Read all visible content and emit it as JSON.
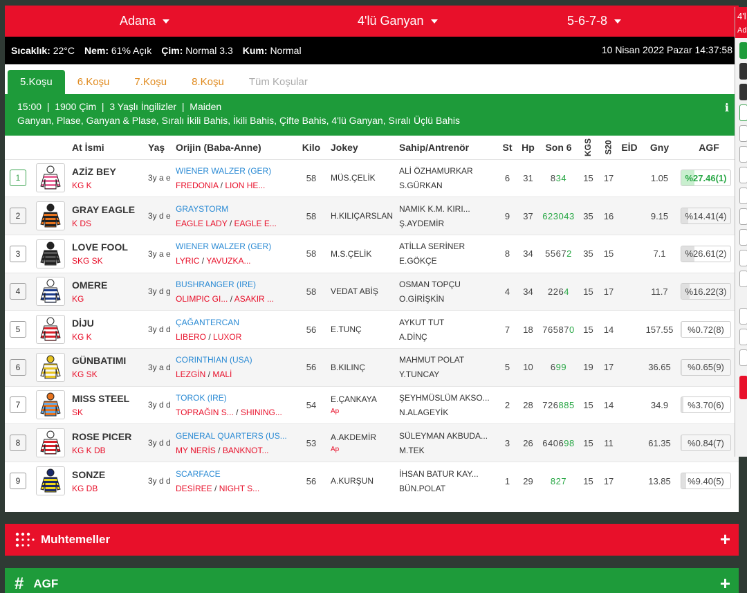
{
  "topbar": {
    "track": "Adana",
    "bet_type": "4'lü Ganyan",
    "races": "5-6-7-8"
  },
  "weather": {
    "temp_label": "Sıcaklık:",
    "temp_value": "22°C",
    "humidity_label": "Nem:",
    "humidity_value": "61% Açık",
    "turf_label": "Çim:",
    "turf_value": "Normal 3.3",
    "dirt_label": "Kum:",
    "dirt_value": "Normal",
    "datetime": "10 Nisan 2022 Pazar 14:37:58"
  },
  "tabs": [
    "5.Koşu",
    "6.Koşu",
    "7.Koşu",
    "8.Koşu",
    "Tüm Koşular"
  ],
  "race_info": {
    "line1": "15:00  |  1900 Çim  |  3 Yaşlı İngilizler  |  Maiden",
    "line2": "Ganyan, Plase, Ganyan & Plase, Sıralı İkili Bahis, İkili Bahis, Çifte Bahis, 4'lü Ganyan, Sıralı Üçlü Bahis",
    "info_glyph": "i"
  },
  "columns": {
    "name": "At İsmi",
    "age": "Yaş",
    "origin": "Orijin (Baba-Anne)",
    "weight": "Kilo",
    "jockey": "Jokey",
    "owner": "Sahip/Antrenör",
    "st": "St",
    "hp": "Hp",
    "son6": "Son 6",
    "kgs": "KGS",
    "s20": "S20",
    "eid": "EİD",
    "gny": "Gny",
    "agf": "AGF"
  },
  "horses": [
    {
      "no": "1",
      "name": "AZİZ BEY",
      "equip": "KG K",
      "age": "3y a e",
      "sire": "WIENER WALZER (GER)",
      "dam": "FREDONIA",
      "damsire": "LION HE...",
      "weight": "58",
      "jockey": "MÜS.ÇELİK",
      "ap": "",
      "owner": "ALİ ÖZHAMURKAR",
      "trainer": "S.GÜRKAN",
      "st": "6",
      "hp": "31",
      "son6_black": "8",
      "son6_green": "34",
      "kgs": "15",
      "s20": "17",
      "gny": "1.05",
      "agf": "%27.46(1)",
      "agf_level": 27.46,
      "selected": true,
      "colors": [
        "#e86a9a",
        "#ffffff"
      ]
    },
    {
      "no": "2",
      "name": "GRAY EAGLE",
      "equip": "K DS",
      "age": "3y d e",
      "sire": "GRAYSTORM",
      "dam": "EAGLE LADY",
      "damsire": "EAGLE E...",
      "weight": "58",
      "jockey": "H.KILIÇARSLAN",
      "ap": "",
      "owner": "NAMIK K.M. KIRI...",
      "trainer": "Ş.AYDEMİR",
      "st": "9",
      "hp": "37",
      "son6_black": "",
      "son6_green": "623043",
      "kgs": "35",
      "s20": "16",
      "gny": "9.15",
      "agf": "%14.41(4)",
      "agf_level": 14.41,
      "selected": false,
      "colors": [
        "#e8741e",
        "#222222"
      ]
    },
    {
      "no": "3",
      "name": "LOVE FOOL",
      "equip": "SKG SK",
      "age": "3y a e",
      "sire": "WIENER WALZER (GER)",
      "dam": "LYRIC",
      "damsire": "YAVUZKA...",
      "weight": "58",
      "jockey": "M.S.ÇELİK",
      "ap": "",
      "owner": "ATİLLA SERİNER",
      "trainer": "E.GÖKÇE",
      "st": "8",
      "hp": "34",
      "son6_black": "5567",
      "son6_green": "2",
      "kgs": "35",
      "s20": "15",
      "gny": "7.1",
      "agf": "%26.61(2)",
      "agf_level": 26.61,
      "selected": false,
      "colors": [
        "#555555",
        "#222222"
      ]
    },
    {
      "no": "4",
      "name": "OMERE",
      "equip": "KG",
      "age": "3y d g",
      "sire": "BUSHRANGER (IRE)",
      "dam": "OLIMPIC GI...",
      "damsire": "ASAKIR ...",
      "weight": "58",
      "jockey": "VEDAT ABİŞ",
      "ap": "",
      "owner": "OSMAN TOPÇU",
      "trainer": "O.GİRİŞKİN",
      "st": "4",
      "hp": "34",
      "son6_black": "226",
      "son6_green": "4",
      "kgs": "15",
      "s20": "17",
      "gny": "11.7",
      "agf": "%16.22(3)",
      "agf_level": 16.22,
      "selected": false,
      "colors": [
        "#1a3a8a",
        "#ffffff"
      ]
    },
    {
      "no": "5",
      "name": "DİJU",
      "equip": "KG K",
      "age": "3y d d",
      "sire": "ÇAĞANTERCAN",
      "dam": "LIBERO",
      "damsire": "LUXOR",
      "weight": "56",
      "jockey": "E.TUNÇ",
      "ap": "",
      "owner": "AYKUT TUT",
      "trainer": "A.DİNÇ",
      "st": "7",
      "hp": "18",
      "son6_black": "76587",
      "son6_green": "0",
      "kgs": "15",
      "s20": "14",
      "gny": "157.55",
      "agf": "%0.72(8)",
      "agf_level": 0.72,
      "selected": false,
      "colors": [
        "#d8202a",
        "#ffffff"
      ]
    },
    {
      "no": "6",
      "name": "GÜNBATIMI",
      "equip": "KG SK",
      "age": "3y a d",
      "sire": "CORINTHIAN (USA)",
      "dam": "LEZGİN",
      "damsire": "MALİ",
      "weight": "56",
      "jockey": "B.KILINÇ",
      "ap": "",
      "owner": "MAHMUT POLAT",
      "trainer": "Y.TUNCAY",
      "st": "5",
      "hp": "10",
      "son6_black": "6",
      "son6_green": "99",
      "kgs": "19",
      "s20": "17",
      "gny": "36.65",
      "agf": "%0.65(9)",
      "agf_level": 0.65,
      "selected": false,
      "colors": [
        "#f5f5f5",
        "#e8c420"
      ]
    },
    {
      "no": "7",
      "name": "MISS STEEL",
      "equip": "SK",
      "age": "3y d d",
      "sire": "TOROK (IRE)",
      "dam": "TOPRAĞIN S...",
      "damsire": "SHINING...",
      "weight": "54",
      "jockey": "E.ÇANKAYA",
      "ap": "Ap",
      "owner": "ŞEYHMÜSLÜM AKSO...",
      "trainer": "N.ALAGEYİK",
      "st": "2",
      "hp": "28",
      "son6_black": "726",
      "son6_green": "885",
      "kgs": "15",
      "s20": "14",
      "gny": "34.9",
      "agf": "%3.70(6)",
      "agf_level": 3.7,
      "selected": false,
      "colors": [
        "#6aa8e0",
        "#e8741e"
      ]
    },
    {
      "no": "8",
      "name": "ROSE PICER",
      "equip": "KG K DB",
      "age": "3y d d",
      "sire": "GENERAL QUARTERS (US...",
      "dam": "MY NERİS",
      "damsire": "BANKNOT...",
      "weight": "53",
      "jockey": "A.AKDEMİR",
      "ap": "Ap",
      "owner": "SÜLEYMAN AKBUDA...",
      "trainer": "M.TEK",
      "st": "3",
      "hp": "26",
      "son6_black": "6406",
      "son6_green": "98",
      "kgs": "15",
      "s20": "11",
      "gny": "61.35",
      "agf": "%0.84(7)",
      "agf_level": 0.84,
      "selected": false,
      "colors": [
        "#d8202a",
        "#ffffff"
      ]
    },
    {
      "no": "9",
      "name": "SONZE",
      "equip": "KG DB",
      "age": "3y d d",
      "sire": "SCARFACE",
      "dam": "DESİREE",
      "damsire": "NIGHT S...",
      "weight": "56",
      "jockey": "A.KURŞUN",
      "ap": "",
      "owner": "İHSAN BATUR KAY...",
      "trainer": "BÜN.POLAT",
      "st": "1",
      "hp": "29",
      "son6_black": "",
      "son6_green": "827",
      "kgs": "15",
      "s20": "17",
      "gny": "13.85",
      "agf": "%9.40(5)",
      "agf_level": 9.4,
      "selected": false,
      "colors": [
        "#f0d818",
        "#1a2a6a"
      ]
    }
  ],
  "accordions": {
    "muhtemeller": "Muhtemeller",
    "agf": "AGF",
    "plus": "+",
    "hash": "#"
  },
  "sidepanel": {
    "line1": "4'l",
    "line2": "Ad"
  }
}
